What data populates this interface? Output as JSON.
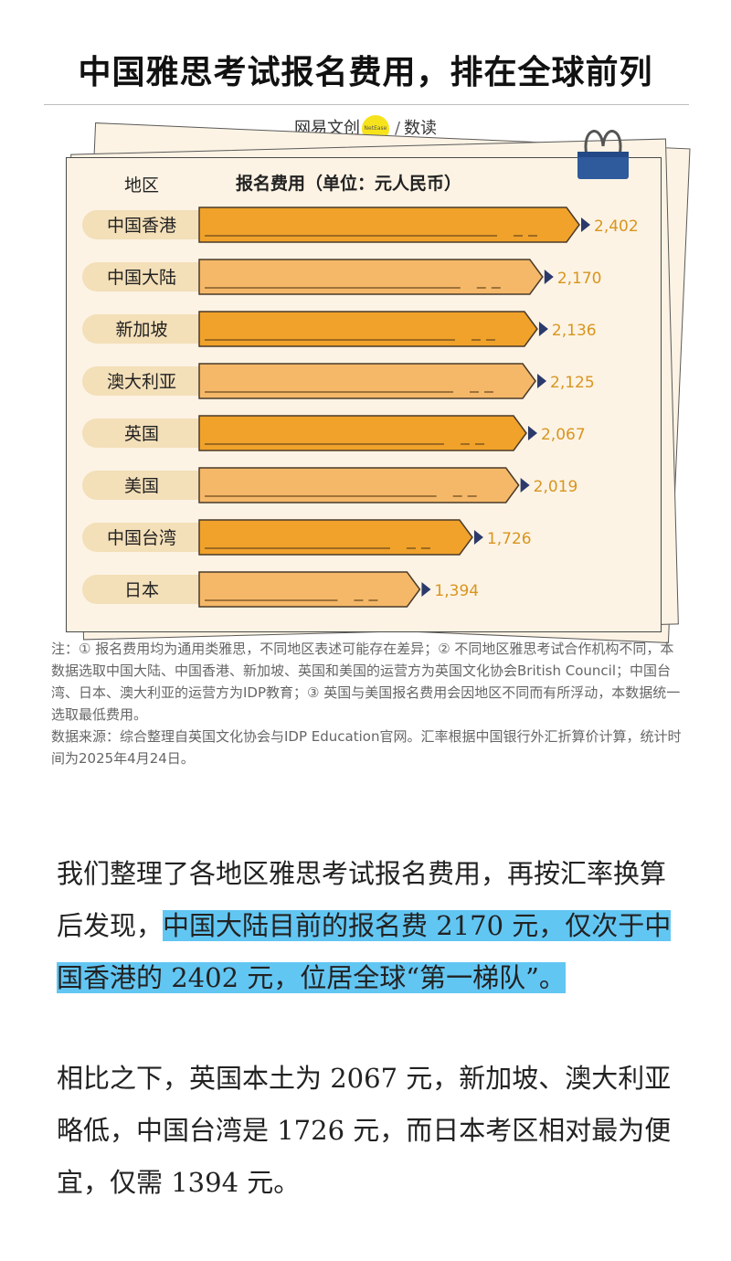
{
  "headline": "中国雅思考试报名费用，排在全球前列",
  "brand": {
    "left": "网易文创",
    "dot": "NetEase",
    "right": "数读"
  },
  "chart_data": {
    "type": "bar",
    "orientation": "horizontal",
    "header_region": "地区",
    "header_fee": "报名费用（单位：元人民币）",
    "categories": [
      "中国香港",
      "中国大陆",
      "新加坡",
      "澳大利亚",
      "英国",
      "美国",
      "中国台湾",
      "日本"
    ],
    "values": [
      2402,
      2170,
      2136,
      2125,
      2067,
      2019,
      1726,
      1394
    ],
    "value_labels": [
      "2,402",
      "2,170",
      "2,136",
      "2,125",
      "2,067",
      "2,019",
      "1,726",
      "1,394"
    ],
    "xlim": [
      0,
      2402
    ],
    "colors": {
      "bar_dark": "#f0a22a",
      "bar_light": "#f5b868",
      "label": "#d9951f",
      "arrow": "#2b3a6b",
      "pill": "#f3dfb8",
      "paper": "#fcf3e4"
    }
  },
  "notes": {
    "line1": "注：① 报名费用均为通用类雅思，不同地区表述可能存在差异；② 不同地区雅思考试合作机构不同，本数据选取中国大陆、中国香港、新加坡、英国和美国的运营方为英国文化协会British Council；中国台湾、日本、澳大利亚的运营方为IDP教育；③ 英国与美国报名费用会因地区不同而有所浮动，本数据统一选取最低费用。",
    "line2": "数据来源：综合整理自英国文化协会与IDP Education官网。汇率根据中国银行外汇折算价计算，统计时间为2025年4月24日。"
  },
  "para1": {
    "a": "我们整理了各地区雅思考试报名费用，再按汇率换算后发现，",
    "hl": "中国大陆目前的报名费 2170 元，仅次于中国香港的 2402 元，位居全球“第一梯队”。"
  },
  "para2": "相比之下，英国本土为 2067 元，新加坡、澳大利亚略低，中国台湾是 1726 元，而日本考区相对最为便宜，仅需 1394 元。"
}
